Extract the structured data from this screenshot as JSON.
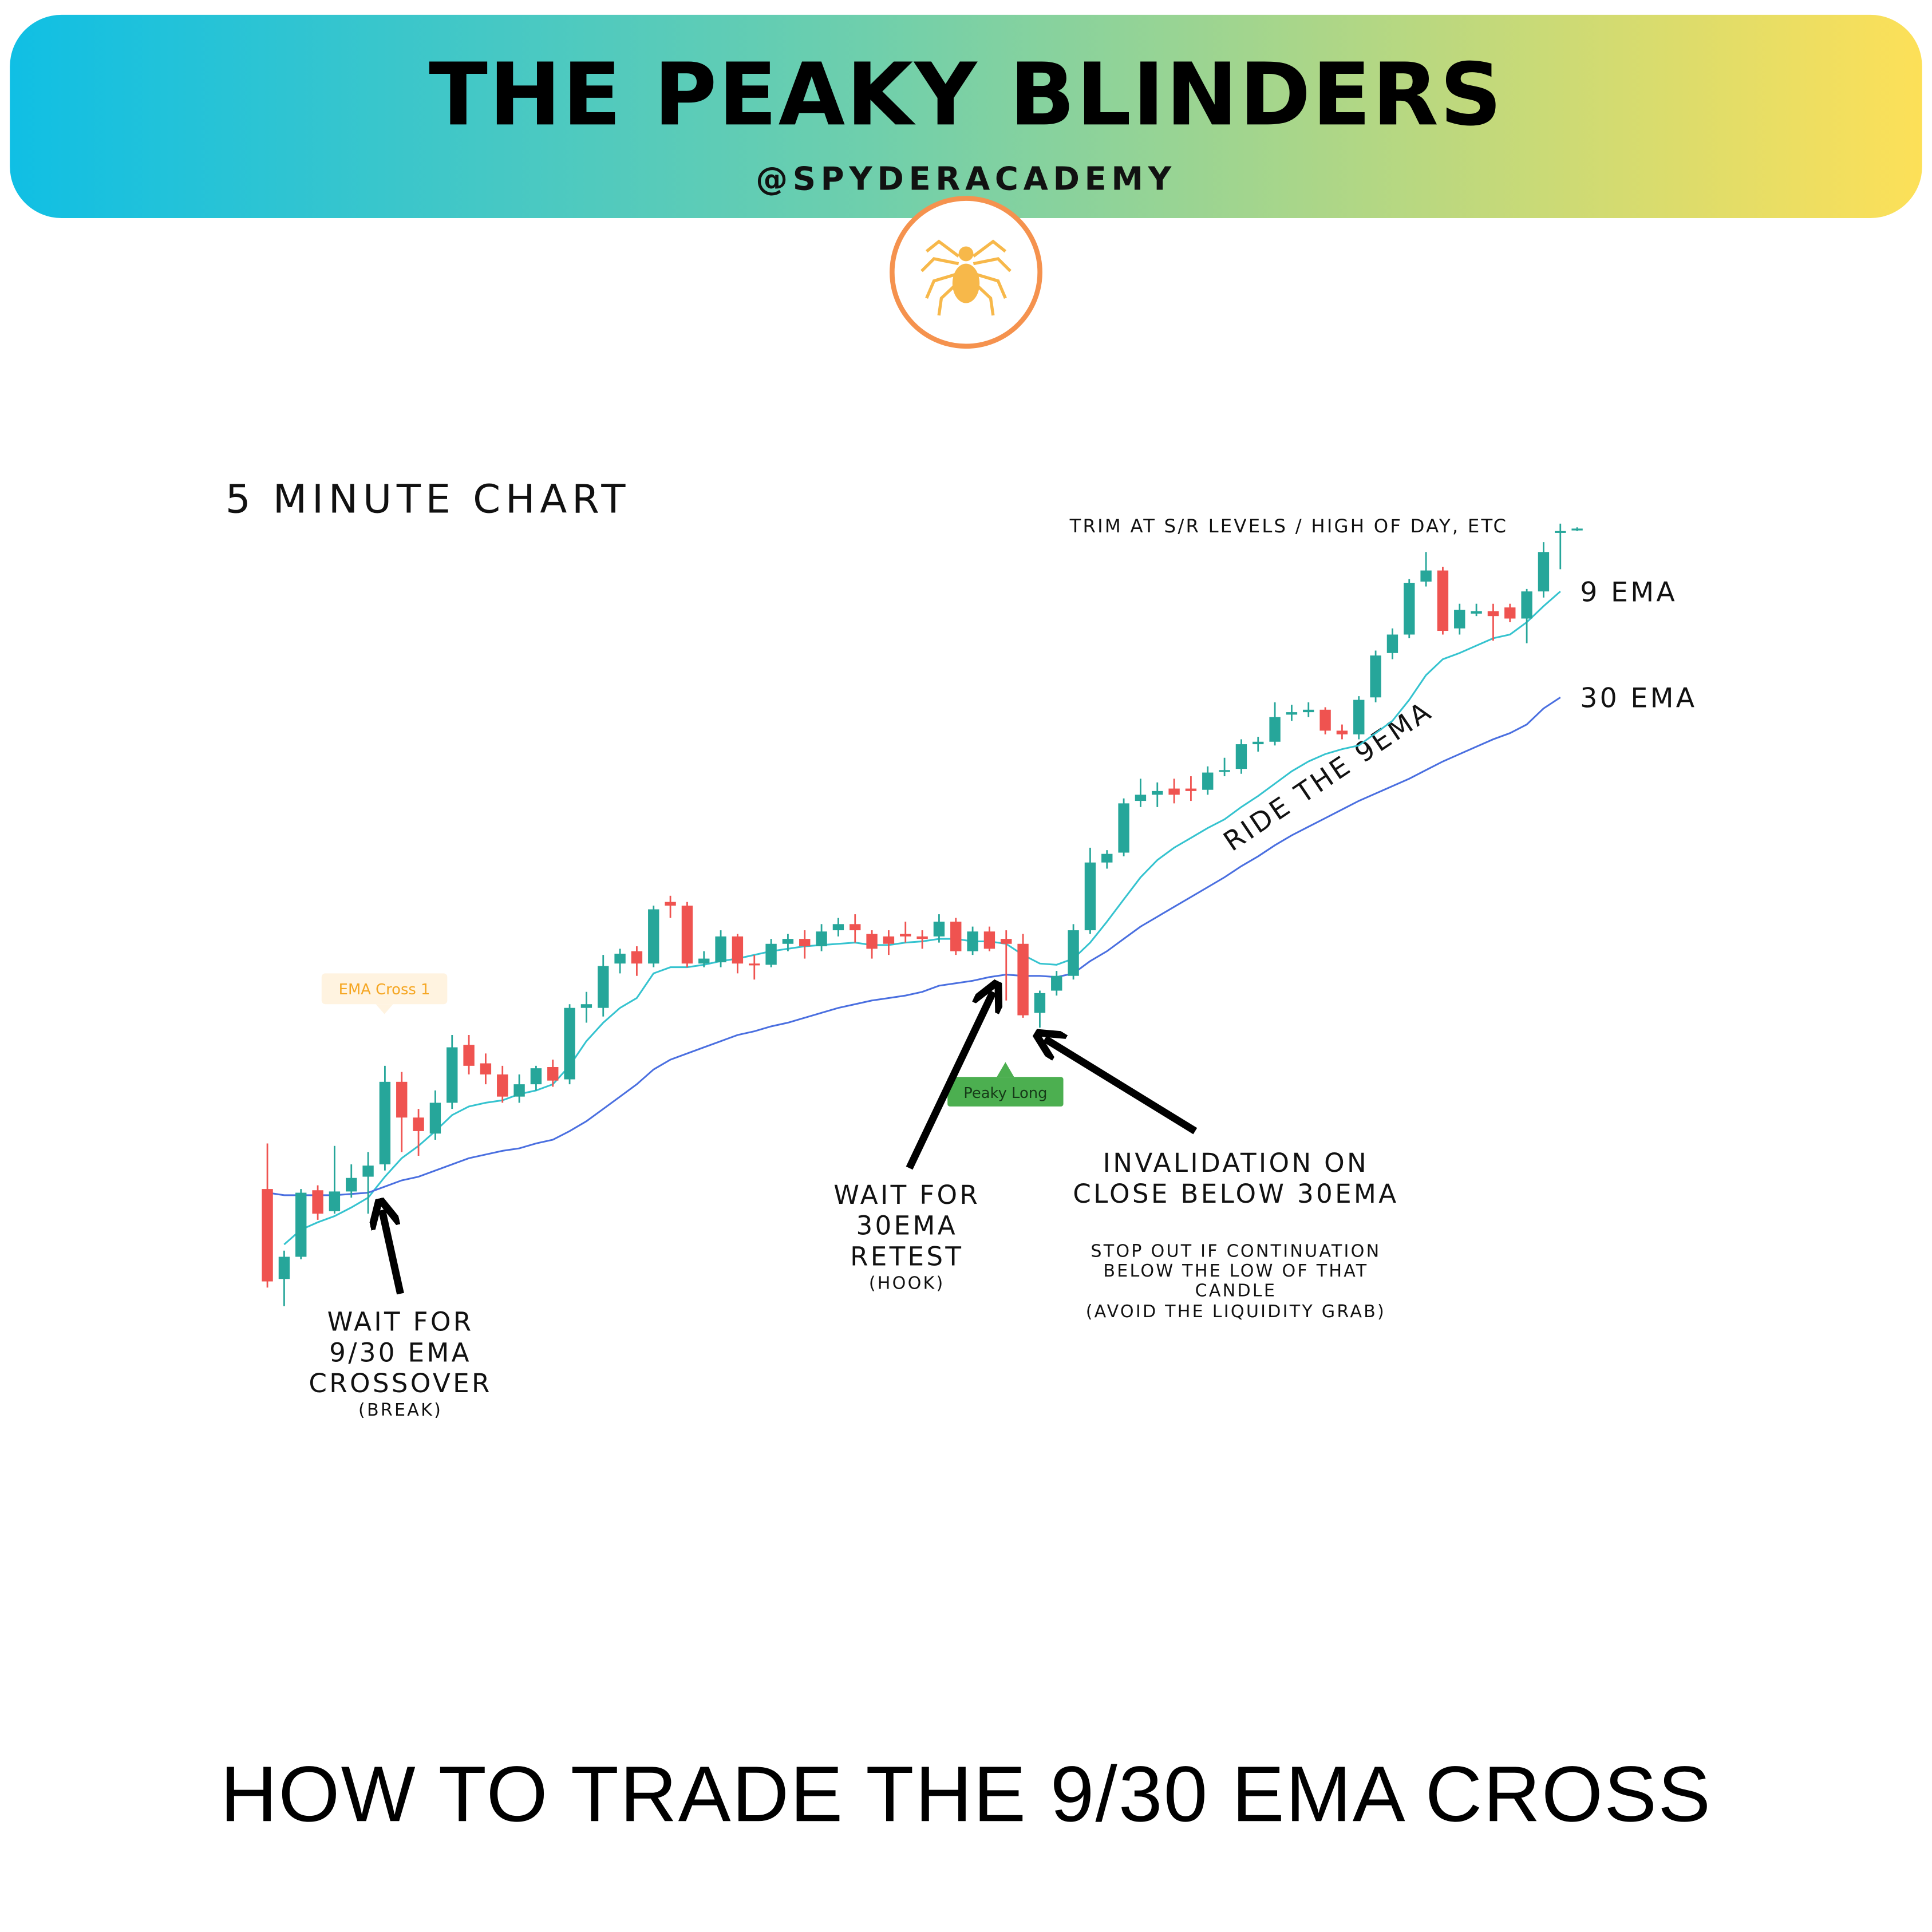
{
  "header": {
    "title": "THE PEAKY BLINDERS",
    "handle": "@SPYDERACADEMY"
  },
  "chart_data": {
    "type": "candlestick",
    "title": "5 MINUTE CHART",
    "open": [
      135,
      62,
      80,
      134,
      117,
      133,
      145,
      155,
      222,
      193,
      180,
      205,
      252,
      237,
      228,
      210,
      220,
      234,
      224,
      282,
      282,
      318,
      328,
      318,
      368,
      365,
      318,
      319,
      340,
      318,
      317,
      334,
      338,
      332,
      345,
      350,
      342,
      340,
      342,
      340,
      340,
      352,
      328,
      344,
      338,
      334,
      278,
      296,
      308,
      345,
      400,
      408,
      450,
      455,
      460,
      460,
      459,
      474,
      476,
      496,
      498,
      520,
      522,
      524,
      507,
      504,
      534,
      570,
      585,
      628,
      637,
      590,
      602,
      604,
      607,
      598,
      620,
      668,
      670
    ],
    "high": [
      172,
      85,
      135,
      138,
      170,
      155,
      165,
      235,
      230,
      200,
      215,
      260,
      260,
      245,
      235,
      228,
      235,
      240,
      285,
      295,
      325,
      330,
      332,
      365,
      373,
      368,
      328,
      345,
      342,
      325,
      338,
      342,
      345,
      350,
      355,
      358,
      345,
      345,
      352,
      345,
      358,
      355,
      348,
      348,
      345,
      342,
      296,
      312,
      350,
      412,
      410,
      452,
      468,
      465,
      468,
      470,
      478,
      485,
      500,
      502,
      530,
      528,
      530,
      526,
      512,
      535,
      572,
      590,
      630,
      652,
      640,
      610,
      610,
      610,
      610,
      622,
      660,
      675,
      672
    ],
    "low": [
      55,
      40,
      78,
      110,
      115,
      128,
      115,
      150,
      165,
      162,
      175,
      200,
      228,
      220,
      205,
      205,
      215,
      218,
      220,
      270,
      275,
      310,
      308,
      315,
      355,
      315,
      315,
      315,
      310,
      305,
      315,
      328,
      322,
      328,
      340,
      335,
      322,
      325,
      335,
      330,
      335,
      325,
      325,
      328,
      288,
      274,
      266,
      292,
      305,
      342,
      395,
      405,
      445,
      445,
      448,
      450,
      455,
      470,
      472,
      490,
      495,
      515,
      518,
      504,
      500,
      500,
      530,
      565,
      582,
      624,
      585,
      585,
      600,
      580,
      595,
      578,
      615,
      638,
      669
    ],
    "close": [
      60,
      80,
      132,
      115,
      133,
      144,
      154,
      222,
      193,
      182,
      205,
      250,
      235,
      228,
      210,
      220,
      233,
      223,
      282,
      285,
      316,
      326,
      318,
      362,
      365,
      318,
      322,
      340,
      318,
      317,
      334,
      338,
      332,
      344,
      350,
      345,
      330,
      334,
      340,
      338,
      352,
      328,
      344,
      330,
      334,
      276,
      294,
      308,
      345,
      400,
      407,
      448,
      455,
      458,
      455,
      458,
      473,
      475,
      496,
      498,
      518,
      522,
      524,
      507,
      504,
      532,
      568,
      585,
      627,
      637,
      588,
      605,
      604,
      600,
      598,
      620,
      652,
      669,
      671
    ],
    "up_color": "#26a69a",
    "down_color": "#ef5350",
    "ylim": [
      0,
      700
    ],
    "series": [
      {
        "name": "9 EMA",
        "color": "#35c3cf",
        "values": [
          null,
          90,
          102,
          108,
          113,
          120,
          128,
          145,
          160,
          170,
          182,
          195,
          202,
          205,
          207,
          212,
          215,
          220,
          235,
          255,
          270,
          282,
          290,
          310,
          315,
          315,
          317,
          320,
          322,
          325,
          328,
          330,
          332,
          333,
          334,
          335,
          333,
          333,
          335,
          336,
          338,
          338,
          336,
          336,
          334,
          325,
          318,
          317,
          322,
          335,
          352,
          370,
          388,
          402,
          412,
          420,
          428,
          435,
          445,
          454,
          464,
          474,
          482,
          488,
          492,
          495,
          505,
          515,
          532,
          552,
          565,
          570,
          576,
          582,
          585,
          595,
          608,
          620,
          null
        ]
      },
      {
        "name": "30 EMA",
        "color": "#4a6fe0",
        "values": [
          132,
          130,
          130,
          130,
          130,
          131,
          132,
          137,
          142,
          145,
          150,
          155,
          160,
          163,
          166,
          168,
          172,
          175,
          182,
          190,
          200,
          210,
          220,
          232,
          240,
          245,
          250,
          255,
          260,
          263,
          267,
          270,
          274,
          278,
          282,
          285,
          288,
          290,
          292,
          295,
          300,
          302,
          304,
          307,
          309,
          308,
          308,
          307,
          310,
          320,
          328,
          338,
          348,
          356,
          364,
          372,
          380,
          388,
          397,
          405,
          414,
          422,
          429,
          436,
          443,
          450,
          456,
          462,
          468,
          475,
          482,
          488,
          494,
          500,
          505,
          512,
          525,
          534,
          null
        ]
      }
    ]
  },
  "notes": {
    "trim": "TRIM AT S/R LEVELS / HIGH OF DAY, ETC",
    "ride": "RIDE THE 9EMA",
    "ema_cross": "EMA Cross 1",
    "peaky_long": "Peaky Long",
    "crossover": [
      "WAIT FOR",
      "9/30 EMA",
      "CROSSOVER"
    ],
    "crossover_note": "(BREAK)",
    "retest": [
      "WAIT FOR",
      "30EMA",
      "RETEST"
    ],
    "retest_note": "(HOOK)",
    "invalidation": [
      "INVALIDATION ON",
      "CLOSE BELOW 30EMA"
    ],
    "stop": [
      "STOP OUT IF CONTINUATION",
      "BELOW THE LOW OF THAT",
      "CANDLE",
      "(AVOID THE LIQUIDITY GRAB)"
    ]
  },
  "footer": "HOW TO TRADE THE 9/30 EMA CROSS"
}
